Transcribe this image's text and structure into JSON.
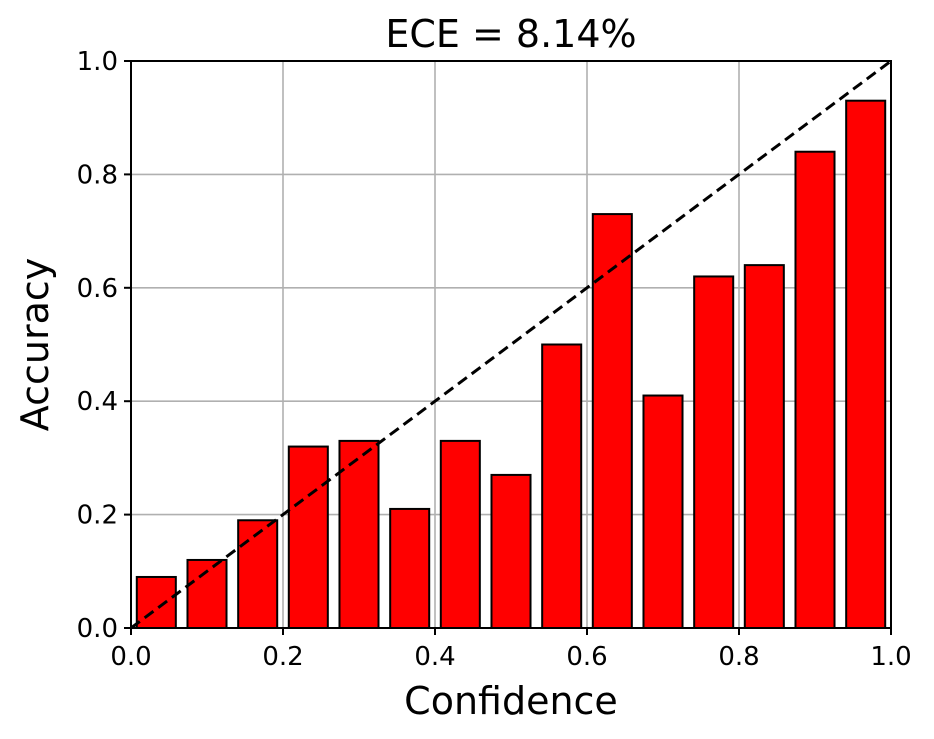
{
  "chart_data": {
    "type": "bar",
    "title": "ECE = 8.14%",
    "xlabel": "Confidence",
    "ylabel": "Accuracy",
    "xlim": [
      0.0,
      1.0
    ],
    "ylim": [
      0.0,
      1.0
    ],
    "x_ticks": [
      "0.0",
      "0.2",
      "0.4",
      "0.6",
      "0.8",
      "1.0"
    ],
    "y_ticks": [
      "0.0",
      "0.2",
      "0.4",
      "0.6",
      "0.8",
      "1.0"
    ],
    "grid": true,
    "bin_width": 0.0667,
    "x": [
      0.0333,
      0.1,
      0.1667,
      0.2333,
      0.3,
      0.3667,
      0.4333,
      0.5,
      0.5667,
      0.6333,
      0.7,
      0.7667,
      0.8333,
      0.9,
      0.9667
    ],
    "values": [
      0.09,
      0.12,
      0.19,
      0.32,
      0.33,
      0.21,
      0.33,
      0.27,
      0.5,
      0.73,
      0.41,
      0.62,
      0.64,
      0.84,
      0.93
    ],
    "reference_line": {
      "style": "dashed",
      "color": "#000000",
      "from": [
        0.0,
        0.0
      ],
      "to": [
        1.0,
        1.0
      ]
    },
    "bar_color": "#ff0000",
    "edge_color": "#000000"
  }
}
